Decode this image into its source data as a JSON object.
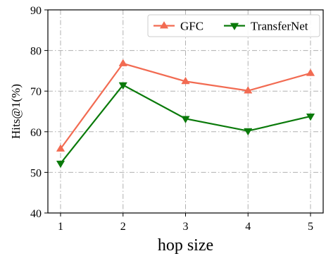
{
  "chart_data": {
    "type": "line",
    "title": "",
    "xlabel": "hop size",
    "ylabel": "Hits@1(%)",
    "x": [
      1,
      2,
      3,
      4,
      5
    ],
    "xticks": [
      "1",
      "2",
      "3",
      "4",
      "5"
    ],
    "ylim": [
      40,
      90
    ],
    "yticks": [
      40,
      50,
      60,
      70,
      80,
      90
    ],
    "grid": true,
    "legend_position": "top-right",
    "series": [
      {
        "name": "GFC",
        "values": [
          55.8,
          76.8,
          72.4,
          70.1,
          74.4
        ],
        "color": "#f26b52",
        "marker": "triangle-up"
      },
      {
        "name": "TransferNet",
        "values": [
          52.2,
          71.5,
          63.2,
          60.2,
          63.8
        ],
        "color": "#0a7a0a",
        "marker": "triangle-down"
      }
    ]
  }
}
